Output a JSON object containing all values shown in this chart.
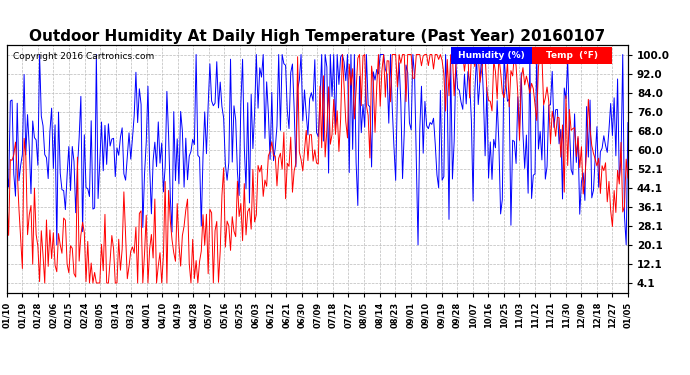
{
  "title": "Outdoor Humidity At Daily High Temperature (Past Year) 20160107",
  "copyright_text": "Copyright 2016 Cartronics.com",
  "background_color": "#ffffff",
  "plot_bg_color": "#ffffff",
  "grid_color": "#bbbbbb",
  "title_fontsize": 11,
  "yticks": [
    4.1,
    12.1,
    20.1,
    28.1,
    36.1,
    44.1,
    52.1,
    60.0,
    68.0,
    76.0,
    84.0,
    92.0,
    100.0
  ],
  "ylim": [
    0,
    104
  ],
  "humidity_color": "#0000ff",
  "temp_color": "#ff0000",
  "xtick_labels": [
    "01/10",
    "01/19",
    "01/28",
    "02/06",
    "02/15",
    "02/24",
    "03/05",
    "03/14",
    "03/23",
    "04/01",
    "04/10",
    "04/19",
    "04/28",
    "05/07",
    "05/16",
    "05/25",
    "06/03",
    "06/12",
    "06/21",
    "06/30",
    "07/09",
    "07/18",
    "07/27",
    "08/05",
    "08/14",
    "08/23",
    "09/01",
    "09/10",
    "09/19",
    "09/28",
    "10/07",
    "10/16",
    "10/25",
    "11/03",
    "11/12",
    "11/21",
    "11/30",
    "12/09",
    "12/18",
    "12/27",
    "01/05"
  ],
  "n_points": 362
}
